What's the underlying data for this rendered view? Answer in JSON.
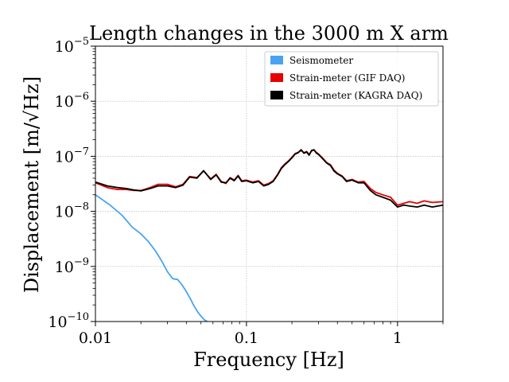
{
  "chart_data": {
    "type": "line",
    "title": "Length changes in the 3000 m X arm",
    "xlabel": "Frequency [Hz]",
    "ylabel": "Displacement [m/√Hz]",
    "x_scale": "log",
    "y_scale": "log",
    "xlim": [
      0.01,
      2
    ],
    "ylim": [
      1e-10,
      1e-05
    ],
    "grid": true,
    "legend_position": "top-right",
    "x_ticks": [
      {
        "value": 0.01,
        "label": "0.01"
      },
      {
        "value": 0.1,
        "label": "0.1"
      },
      {
        "value": 1,
        "label": "1"
      }
    ],
    "y_ticks": [
      {
        "value": 1e-10,
        "base": "10",
        "exp": "−10"
      },
      {
        "value": 1e-09,
        "base": "10",
        "exp": "−9"
      },
      {
        "value": 1e-08,
        "base": "10",
        "exp": "−8"
      },
      {
        "value": 1e-07,
        "base": "10",
        "exp": "−7"
      },
      {
        "value": 1e-06,
        "base": "10",
        "exp": "−6"
      },
      {
        "value": 1e-05,
        "base": "10",
        "exp": "−5"
      }
    ],
    "series": [
      {
        "name": "Seismometer",
        "color": "#4aa3f0",
        "x": [
          0.01,
          0.0125,
          0.015,
          0.0175,
          0.02,
          0.0225,
          0.025,
          0.0275,
          0.03,
          0.0325,
          0.035,
          0.0375,
          0.04,
          0.0425,
          0.045,
          0.0475,
          0.05,
          0.0525,
          0.055
        ],
        "y": [
          2e-08,
          1.3e-08,
          8.5e-09,
          5.2e-09,
          3.9e-09,
          2.8e-09,
          1.9e-09,
          1.25e-09,
          8e-10,
          6e-10,
          5.8e-10,
          4.6e-10,
          3.5e-10,
          2.6e-10,
          1.9e-10,
          1.5e-10,
          1.25e-10,
          1.08e-10,
          1e-10
        ]
      },
      {
        "name": "Strain-meter (GIF DAQ)",
        "color": "#e60000",
        "x": [
          0.01,
          0.012,
          0.014,
          0.016,
          0.018,
          0.02,
          0.023,
          0.026,
          0.03,
          0.034,
          0.038,
          0.042,
          0.047,
          0.052,
          0.058,
          0.063,
          0.068,
          0.073,
          0.078,
          0.083,
          0.088,
          0.093,
          0.1,
          0.11,
          0.12,
          0.13,
          0.14,
          0.15,
          0.16,
          0.17,
          0.18,
          0.19,
          0.2,
          0.21,
          0.22,
          0.23,
          0.24,
          0.25,
          0.26,
          0.27,
          0.28,
          0.29,
          0.3,
          0.32,
          0.34,
          0.36,
          0.38,
          0.4,
          0.43,
          0.46,
          0.5,
          0.55,
          0.6,
          0.66,
          0.72,
          0.8,
          0.9,
          1.0,
          1.1,
          1.2,
          1.35,
          1.5,
          1.7,
          2.0
        ],
        "y": [
          3.3e-08,
          2.7e-08,
          2.5e-08,
          2.5e-08,
          2.4e-08,
          2.4e-08,
          2.7e-08,
          3.1e-08,
          3.1e-08,
          2.8e-08,
          3.1e-08,
          4.3e-08,
          4.1e-08,
          5.4e-08,
          3.9e-08,
          4.7e-08,
          3.5e-08,
          3.2e-08,
          4.1e-08,
          3.7e-08,
          4.5e-08,
          3.6e-08,
          3.7e-08,
          3.4e-08,
          3.6e-08,
          3e-08,
          3.2e-08,
          3.6e-08,
          4.6e-08,
          6.2e-08,
          7.3e-08,
          8.3e-08,
          9.6e-08,
          1.12e-07,
          1.18e-07,
          1.28e-07,
          1.16e-07,
          1.22e-07,
          1.08e-07,
          1.25e-07,
          1.3e-07,
          1.18e-07,
          1.1e-07,
          9.2e-08,
          7.7e-08,
          7e-08,
          5.6e-08,
          4.9e-08,
          4.4e-08,
          3.6e-08,
          3.8e-08,
          3.4e-08,
          3.5e-08,
          2.6e-08,
          2.2e-08,
          2e-08,
          1.8e-08,
          1.3e-08,
          1.4e-08,
          1.5e-08,
          1.4e-08,
          1.55e-08,
          1.45e-08,
          1.5e-08
        ]
      },
      {
        "name": "Strain-meter (KAGRA DAQ)",
        "color": "#000000",
        "x": [
          0.01,
          0.012,
          0.014,
          0.016,
          0.018,
          0.02,
          0.023,
          0.026,
          0.03,
          0.034,
          0.038,
          0.042,
          0.047,
          0.052,
          0.058,
          0.063,
          0.068,
          0.073,
          0.078,
          0.083,
          0.088,
          0.093,
          0.1,
          0.11,
          0.12,
          0.13,
          0.14,
          0.15,
          0.16,
          0.17,
          0.18,
          0.19,
          0.2,
          0.21,
          0.22,
          0.23,
          0.24,
          0.25,
          0.26,
          0.27,
          0.28,
          0.29,
          0.3,
          0.32,
          0.34,
          0.36,
          0.38,
          0.4,
          0.43,
          0.46,
          0.5,
          0.55,
          0.6,
          0.66,
          0.72,
          0.8,
          0.9,
          1.0,
          1.1,
          1.2,
          1.35,
          1.5,
          1.7,
          2.0
        ],
        "y": [
          3.4e-08,
          2.9e-08,
          2.7e-08,
          2.6e-08,
          2.45e-08,
          2.35e-08,
          2.6e-08,
          2.9e-08,
          2.9e-08,
          2.7e-08,
          3e-08,
          4.2e-08,
          4e-08,
          5.5e-08,
          3.8e-08,
          4.6e-08,
          3.4e-08,
          3.3e-08,
          4e-08,
          3.6e-08,
          4.4e-08,
          3.5e-08,
          3.6e-08,
          3.3e-08,
          3.5e-08,
          2.9e-08,
          3.1e-08,
          3.5e-08,
          4.5e-08,
          6e-08,
          7.1e-08,
          8.1e-08,
          9.4e-08,
          1.1e-07,
          1.16e-07,
          1.32e-07,
          1.14e-07,
          1.2e-07,
          1.05e-07,
          1.28e-07,
          1.32e-07,
          1.15e-07,
          1.08e-07,
          9e-08,
          7.5e-08,
          6.8e-08,
          5.4e-08,
          4.8e-08,
          4.3e-08,
          3.5e-08,
          3.7e-08,
          3.3e-08,
          3.3e-08,
          2.4e-08,
          2e-08,
          1.8e-08,
          1.6e-08,
          1.2e-08,
          1.3e-08,
          1.25e-08,
          1.2e-08,
          1.3e-08,
          1.2e-08,
          1.3e-08
        ]
      }
    ]
  }
}
